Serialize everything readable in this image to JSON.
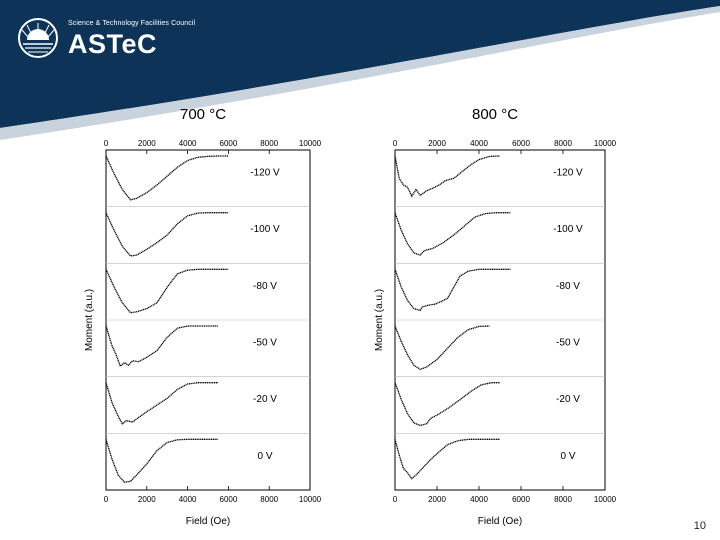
{
  "header": {
    "organisation": "Science & Technology Facilities Council",
    "logo_name": "ASTeC",
    "colors": {
      "band": "#0e3358",
      "stripe": "#c9d3dd"
    }
  },
  "page_number": "10",
  "chart_data": [
    {
      "type": "line",
      "title": "700 °C",
      "xlabel": "Field (Oe)",
      "ylabel": "Moment (a.u.)",
      "xlim": [
        0,
        10000
      ],
      "xticks": [
        0,
        2000,
        4000,
        6000,
        8000,
        10000
      ],
      "xtick_labels": [
        "0",
        "2000",
        "4000",
        "6000",
        "8000",
        "10000"
      ],
      "grid": false,
      "series": [
        {
          "name": "-120 V",
          "x": [
            0,
            400,
            800,
            1200,
            1500,
            2000,
            2500,
            3000,
            3500,
            4000,
            4500,
            5000,
            5500,
            6000
          ],
          "y": [
            1.0,
            0.6,
            0.25,
            0.02,
            0.05,
            0.18,
            0.35,
            0.55,
            0.75,
            0.9,
            0.97,
            0.99,
            1.0,
            1.0
          ]
        },
        {
          "name": "-100 V",
          "x": [
            0,
            400,
            800,
            1200,
            1500,
            2000,
            2500,
            3000,
            3500,
            4000,
            4500,
            5000,
            5500,
            6000
          ],
          "y": [
            1.0,
            0.6,
            0.25,
            0.03,
            0.05,
            0.18,
            0.33,
            0.5,
            0.75,
            0.93,
            0.99,
            1.0,
            1.0,
            1.0
          ]
        },
        {
          "name": "-80 V",
          "x": [
            0,
            400,
            800,
            1200,
            1500,
            2000,
            2500,
            3000,
            3500,
            4000,
            4500,
            5000,
            5500,
            6000
          ],
          "y": [
            1.0,
            0.6,
            0.25,
            0.03,
            0.05,
            0.12,
            0.25,
            0.6,
            0.9,
            0.98,
            1.0,
            1.0,
            1.0,
            1.0
          ]
        },
        {
          "name": "-50 V",
          "x": [
            0,
            300,
            500,
            700,
            900,
            1100,
            1300,
            1600,
            2000,
            2500,
            3000,
            3500,
            4000,
            4500,
            5000,
            5500
          ],
          "y": [
            1.0,
            0.55,
            0.35,
            0.1,
            0.18,
            0.12,
            0.22,
            0.2,
            0.3,
            0.45,
            0.75,
            0.95,
            1.0,
            1.0,
            1.0,
            1.0
          ]
        },
        {
          "name": "-20 V",
          "x": [
            0,
            300,
            600,
            800,
            1000,
            1300,
            1600,
            2000,
            2500,
            3000,
            3500,
            4000,
            4500,
            5000,
            5500
          ],
          "y": [
            1.0,
            0.55,
            0.25,
            0.08,
            0.15,
            0.12,
            0.22,
            0.35,
            0.5,
            0.65,
            0.85,
            0.97,
            1.0,
            1.0,
            1.0
          ]
        },
        {
          "name": "0 V",
          "x": [
            0,
            300,
            600,
            900,
            1200,
            1500,
            2000,
            2500,
            3000,
            3500,
            4000,
            4500,
            5000,
            5500
          ],
          "y": [
            1.0,
            0.55,
            0.2,
            0.04,
            0.06,
            0.2,
            0.45,
            0.75,
            0.93,
            0.99,
            1.0,
            1.0,
            1.0,
            1.0
          ]
        }
      ]
    },
    {
      "type": "line",
      "title": "800 °C",
      "xlabel": "Field (Oe)",
      "ylabel": "Moment (a.u.)",
      "xlim": [
        0,
        10000
      ],
      "xticks": [
        0,
        2000,
        4000,
        6000,
        8000,
        10000
      ],
      "xtick_labels": [
        "0",
        "2000",
        "4000",
        "6000",
        "8000",
        "10000"
      ],
      "grid": false,
      "series": [
        {
          "name": "-120 V",
          "x": [
            0,
            200,
            400,
            600,
            800,
            1000,
            1200,
            1500,
            1800,
            2100,
            2400,
            2800,
            3200,
            3600,
            4000,
            4500,
            5000
          ],
          "y": [
            1.0,
            0.5,
            0.35,
            0.3,
            0.1,
            0.25,
            0.12,
            0.22,
            0.28,
            0.35,
            0.45,
            0.5,
            0.65,
            0.8,
            0.92,
            0.99,
            1.0
          ]
        },
        {
          "name": "-100 V",
          "x": [
            0,
            300,
            600,
            900,
            1200,
            1400,
            1800,
            2300,
            2800,
            3300,
            3800,
            4300,
            4800,
            5300,
            5500
          ],
          "y": [
            1.0,
            0.6,
            0.3,
            0.1,
            0.05,
            0.15,
            0.2,
            0.33,
            0.5,
            0.7,
            0.9,
            0.98,
            1.0,
            1.0,
            1.0
          ]
        },
        {
          "name": "-80 V",
          "x": [
            0,
            300,
            600,
            900,
            1200,
            1300,
            1600,
            1900,
            2200,
            2500,
            2800,
            3100,
            3500,
            4000,
            4500,
            5000,
            5500
          ],
          "y": [
            1.0,
            0.6,
            0.3,
            0.12,
            0.08,
            0.16,
            0.2,
            0.22,
            0.28,
            0.35,
            0.6,
            0.85,
            0.96,
            1.0,
            1.0,
            1.0,
            1.0
          ]
        },
        {
          "name": "-50 V",
          "x": [
            0,
            300,
            600,
            900,
            1200,
            1500,
            2000,
            2500,
            3000,
            3500,
            4000,
            4500
          ],
          "y": [
            1.0,
            0.65,
            0.35,
            0.12,
            0.03,
            0.08,
            0.25,
            0.5,
            0.75,
            0.92,
            0.99,
            1.0
          ]
        },
        {
          "name": "-20 V",
          "x": [
            0,
            300,
            600,
            900,
            1200,
            1500,
            1700,
            2100,
            2600,
            3100,
            3600,
            4100,
            4600,
            5000
          ],
          "y": [
            1.0,
            0.62,
            0.3,
            0.1,
            0.04,
            0.08,
            0.2,
            0.3,
            0.45,
            0.62,
            0.8,
            0.95,
            1.0,
            1.0
          ]
        },
        {
          "name": "0 V",
          "x": [
            0,
            200,
            400,
            600,
            800,
            1000,
            1300,
            1700,
            2100,
            2500,
            3000,
            3500,
            4000,
            4500,
            5000
          ],
          "y": [
            1.0,
            0.65,
            0.35,
            0.25,
            0.12,
            0.2,
            0.35,
            0.55,
            0.72,
            0.88,
            0.97,
            1.0,
            1.0,
            1.0,
            1.0
          ]
        }
      ]
    }
  ]
}
